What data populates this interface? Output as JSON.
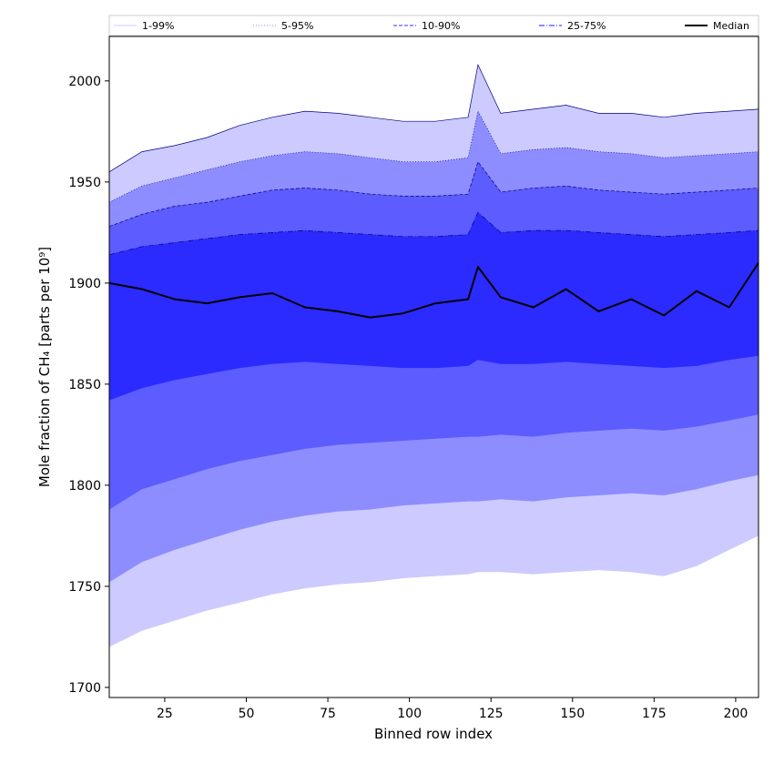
{
  "chart_data": {
    "type": "area",
    "xlabel": "Binned row index",
    "ylabel": "Mole fraction of CH₄ [parts per 10⁹]",
    "xlim": [
      8,
      207
    ],
    "ylim": [
      1695,
      2022
    ],
    "x_ticks": [
      25,
      50,
      75,
      100,
      125,
      150,
      175,
      200
    ],
    "y_ticks": [
      1700,
      1750,
      1800,
      1850,
      1900,
      1950,
      2000
    ],
    "grid": false,
    "legend_position": "top",
    "x": [
      8,
      18,
      28,
      38,
      48,
      58,
      68,
      78,
      88,
      98,
      108,
      118,
      121,
      128,
      138,
      148,
      158,
      168,
      178,
      188,
      198,
      207
    ],
    "series": [
      {
        "name": "1-99%",
        "style": "solid-thin",
        "color": "#9999ff",
        "lower": [
          1720,
          1728,
          1733,
          1738,
          1742,
          1746,
          1749,
          1751,
          1752,
          1754,
          1755,
          1756,
          1757,
          1757,
          1756,
          1757,
          1758,
          1757,
          1755,
          1760,
          1768,
          1775
        ],
        "upper": [
          1955,
          1965,
          1968,
          1972,
          1978,
          1982,
          1985,
          1984,
          1982,
          1980,
          1980,
          1982,
          2008,
          1984,
          1986,
          1988,
          1984,
          1984,
          1982,
          1984,
          1985,
          1986
        ]
      },
      {
        "name": "5-95%",
        "style": "dotted",
        "color": "#6666ff",
        "lower": [
          1752,
          1762,
          1768,
          1773,
          1778,
          1782,
          1785,
          1787,
          1788,
          1790,
          1791,
          1792,
          1792,
          1793,
          1792,
          1794,
          1795,
          1796,
          1795,
          1798,
          1802,
          1805
        ],
        "upper": [
          1940,
          1948,
          1952,
          1956,
          1960,
          1963,
          1965,
          1964,
          1962,
          1960,
          1960,
          1962,
          1985,
          1964,
          1966,
          1967,
          1965,
          1964,
          1962,
          1963,
          1964,
          1965
        ]
      },
      {
        "name": "10-90%",
        "style": "dashed",
        "color": "#3333ff",
        "lower": [
          1788,
          1798,
          1803,
          1808,
          1812,
          1815,
          1818,
          1820,
          1821,
          1822,
          1823,
          1824,
          1824,
          1825,
          1824,
          1826,
          1827,
          1828,
          1827,
          1829,
          1832,
          1835
        ],
        "upper": [
          1928,
          1934,
          1938,
          1940,
          1943,
          1946,
          1947,
          1946,
          1944,
          1943,
          1943,
          1944,
          1960,
          1945,
          1947,
          1948,
          1946,
          1945,
          1944,
          1945,
          1946,
          1947
        ]
      },
      {
        "name": "25-75%",
        "style": "dashdot",
        "color": "#1a1aff",
        "lower": [
          1842,
          1848,
          1852,
          1855,
          1858,
          1860,
          1861,
          1860,
          1859,
          1858,
          1858,
          1859,
          1862,
          1860,
          1860,
          1861,
          1860,
          1859,
          1858,
          1859,
          1862,
          1864
        ],
        "upper": [
          1914,
          1918,
          1920,
          1922,
          1924,
          1925,
          1926,
          1925,
          1924,
          1923,
          1923,
          1924,
          1935,
          1925,
          1926,
          1926,
          1925,
          1924,
          1923,
          1924,
          1925,
          1926
        ]
      },
      {
        "name": "Median",
        "style": "solid",
        "color": "#000000",
        "values": [
          1900,
          1897,
          1892,
          1890,
          1893,
          1895,
          1888,
          1886,
          1883,
          1885,
          1890,
          1892,
          1908,
          1893,
          1888,
          1897,
          1886,
          1892,
          1884,
          1896,
          1888,
          1910
        ]
      }
    ],
    "fills": [
      "#cccaff",
      "#8d8dff",
      "#5c5cff",
      "#2b2bff"
    ]
  }
}
